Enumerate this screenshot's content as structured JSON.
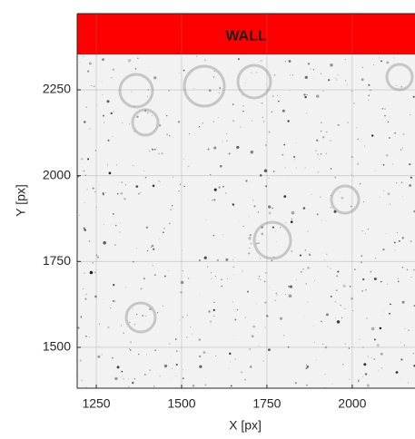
{
  "chart_data": {
    "type": "image",
    "xlabel": "X [px]",
    "ylabel": "Y [px]",
    "xlim": [
      1194,
      2184
    ],
    "ylim": [
      1381,
      2472
    ],
    "xticks": [
      1250,
      1500,
      1750,
      2000
    ],
    "yticks": [
      1500,
      1750,
      2000,
      2250
    ],
    "grid": true,
    "wall": {
      "label": "WALL",
      "ylim": [
        2353,
        2472
      ],
      "color": "#ff0000"
    }
  }
}
